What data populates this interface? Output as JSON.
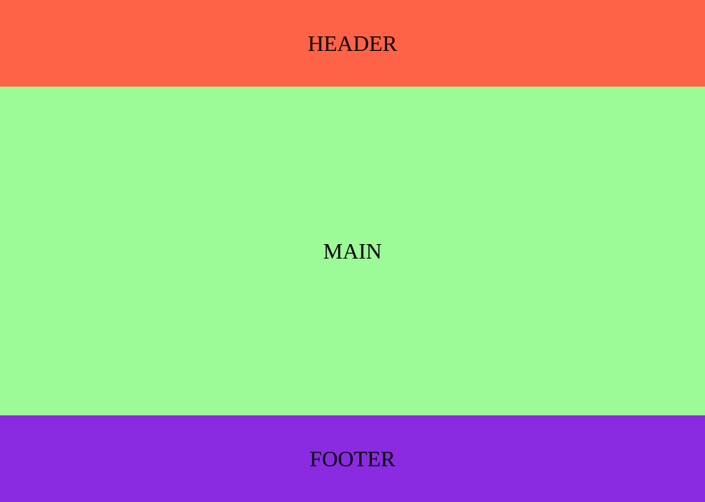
{
  "header": {
    "label": "HEADER",
    "color": "#FF6347"
  },
  "main": {
    "label": "MAIN",
    "color": "#9DFB97"
  },
  "footer": {
    "label": "FOOTER",
    "color": "#8A2BE2"
  }
}
